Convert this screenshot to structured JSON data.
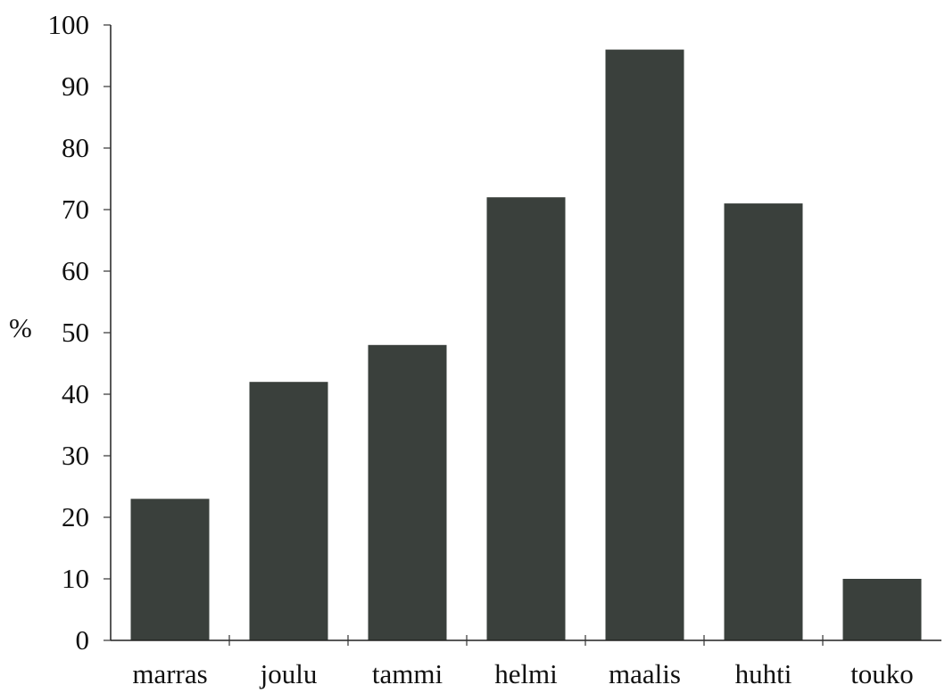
{
  "chart_data": {
    "type": "bar",
    "title": "",
    "xlabel": "",
    "ylabel": "%",
    "ylim": [
      0,
      100
    ],
    "yticks": [
      "0",
      "10",
      "20",
      "30",
      "40",
      "50",
      "60",
      "70",
      "80",
      "90",
      "100"
    ],
    "categories": [
      "marras",
      "joulu",
      "tammi",
      "helmi",
      "maalis",
      "huhti",
      "touko"
    ],
    "values": [
      23,
      42,
      48,
      72,
      96,
      71,
      10
    ],
    "grid": false,
    "bar_color": "#3a403c"
  }
}
